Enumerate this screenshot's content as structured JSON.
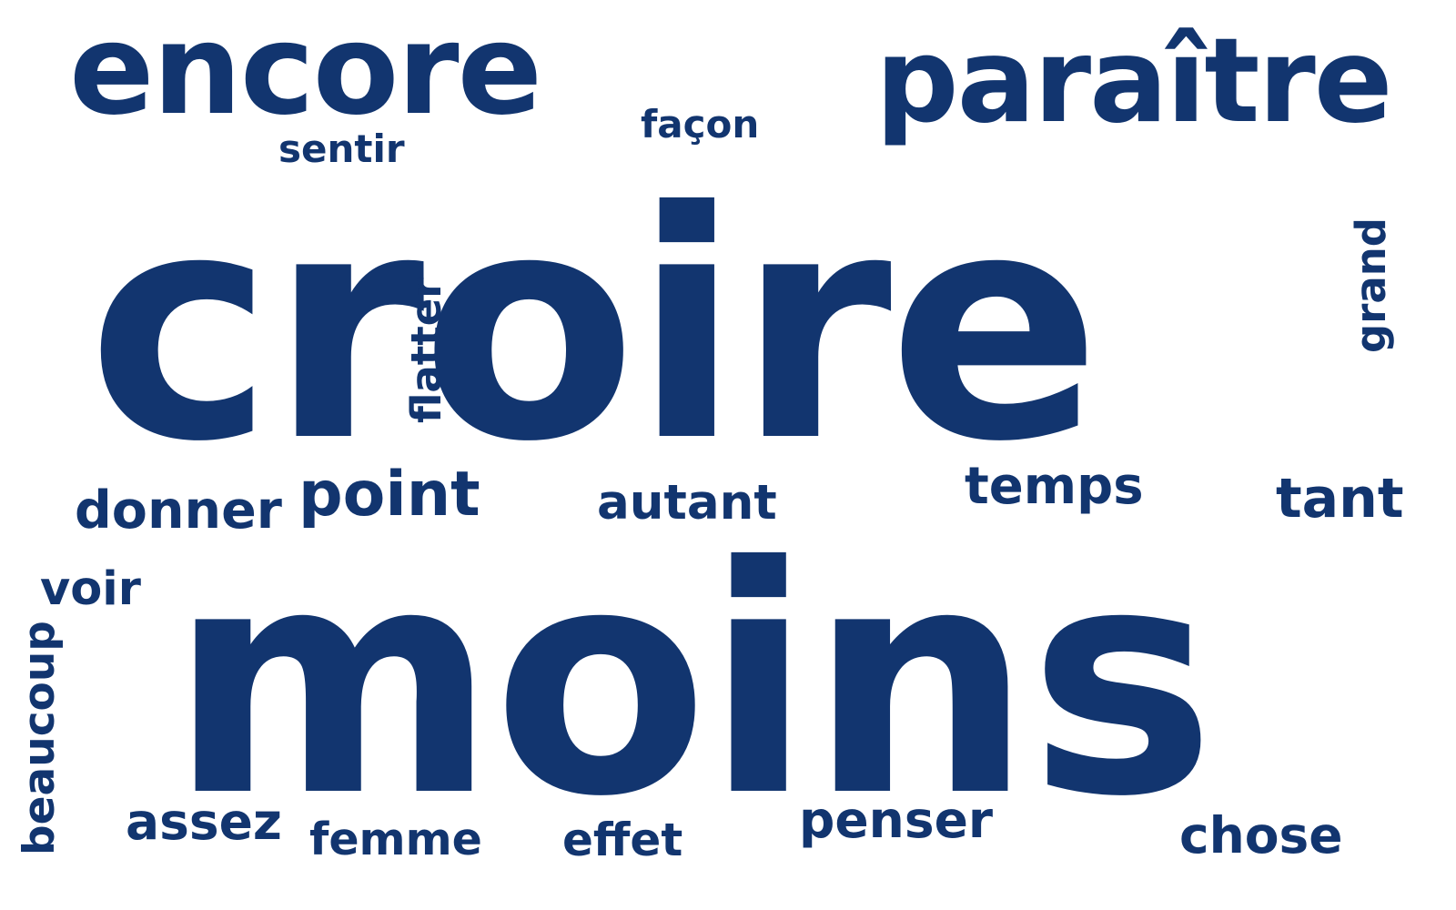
{
  "color": "#12356f",
  "background": "#ffffff",
  "words": {
    "croire": "croire",
    "moins": "moins",
    "encore": "encore",
    "paraitre": "paraître",
    "facon": "façon",
    "sentir": "sentir",
    "flatter": "flatter",
    "grand": "grand",
    "donner": "donner",
    "point": "point",
    "autant": "autant",
    "temps": "temps",
    "tant": "tant",
    "voir": "voir",
    "beaucoup": "beaucoup",
    "assez": "assez",
    "femme": "femme",
    "effet": "effet",
    "penser": "penser",
    "chose": "chose"
  }
}
